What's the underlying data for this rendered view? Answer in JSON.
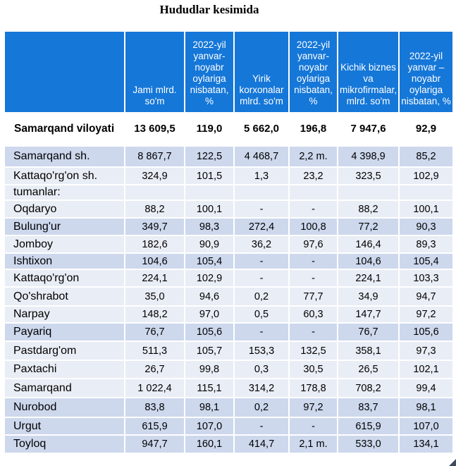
{
  "title": "Hududlar kesimida",
  "headers": [
    "",
    "Jami mlrd. so'm",
    "2022-yil yanvar-noyabr oylariga nisbatan, %",
    "Yirik korxonalar mlrd. so'm",
    "2022-yil yanvar-noyabr oylariga nisbatan, %",
    "Kichik biznes va mikrofirmalar, mlrd. so'm",
    "2022-yil yanvar – noyabr oylariga nisbatan, %"
  ],
  "total": {
    "name": "Samarqand viloyati",
    "values": [
      "13 609,5",
      "119,0",
      "5 662,0",
      "196,8",
      "7 947,6",
      "92,9"
    ]
  },
  "rows": [
    {
      "name": "Samarqand sh.",
      "values": [
        "8 867,7",
        "122,5",
        "4 468,7",
        "2,2 m.",
        "4 398,9",
        "85,2"
      ]
    },
    {
      "name": "Kattaqo'rg'on sh.",
      "values": [
        "324,9",
        "101,5",
        "1,3",
        "23,2",
        "323,5",
        "102,9"
      ]
    },
    {
      "name": "tumanlar:",
      "values": [
        "",
        "",
        "",
        "",
        "",
        ""
      ]
    },
    {
      "name": "Oqdaryo",
      "values": [
        "88,2",
        "100,1",
        "-",
        "-",
        "88,2",
        "100,1"
      ]
    },
    {
      "name": "Bulung'ur",
      "values": [
        "349,7",
        "98,3",
        "272,4",
        "100,8",
        "77,2",
        "90,3"
      ]
    },
    {
      "name": "Jomboy",
      "values": [
        "182,6",
        "90,9",
        "36,2",
        "97,6",
        "146,4",
        "89,3"
      ]
    },
    {
      "name": "Ishtixon",
      "values": [
        "104,6",
        "105,4",
        "-",
        "-",
        "104,6",
        "105,4"
      ]
    },
    {
      "name": "Kattaqo'rg'on",
      "values": [
        "224,1",
        "102,9",
        "-",
        "-",
        "224,1",
        "103,3"
      ]
    },
    {
      "name": "Qo'shrabot",
      "values": [
        "35,0",
        "94,6",
        "0,2",
        "77,7",
        "34,9",
        "94,7"
      ]
    },
    {
      "name": "Narpay",
      "values": [
        "148,2",
        "97,0",
        "0,5",
        "60,3",
        "147,7",
        "97,2"
      ]
    },
    {
      "name": "Payariq",
      "values": [
        "76,7",
        "105,6",
        "-",
        "-",
        "76,7",
        "105,6"
      ]
    },
    {
      "name": "Pastdarg'om",
      "values": [
        "511,3",
        "105,7",
        "153,3",
        "132,5",
        "358,1",
        "97,3"
      ]
    },
    {
      "name": "Paxtachi",
      "values": [
        "26,7",
        "99,8",
        "0,3",
        "30,5",
        "26,5",
        "102,1"
      ]
    },
    {
      "name": "Samarqand",
      "values": [
        "1 022,4",
        "115,1",
        "314,2",
        "178,8",
        "708,2",
        "99,4"
      ]
    },
    {
      "name": "Nurobod",
      "values": [
        "83,8",
        "98,1",
        "0,2",
        "97,2",
        "83,7",
        "98,1"
      ]
    },
    {
      "name": "Urgut",
      "values": [
        "615,9",
        "107,0",
        "-",
        "-",
        "615,9",
        "107,0"
      ]
    },
    {
      "name": "Toyloq",
      "values": [
        "947,7",
        "160,1",
        "414,7",
        "2,1 m.",
        "533,0",
        "134,1"
      ]
    }
  ]
}
